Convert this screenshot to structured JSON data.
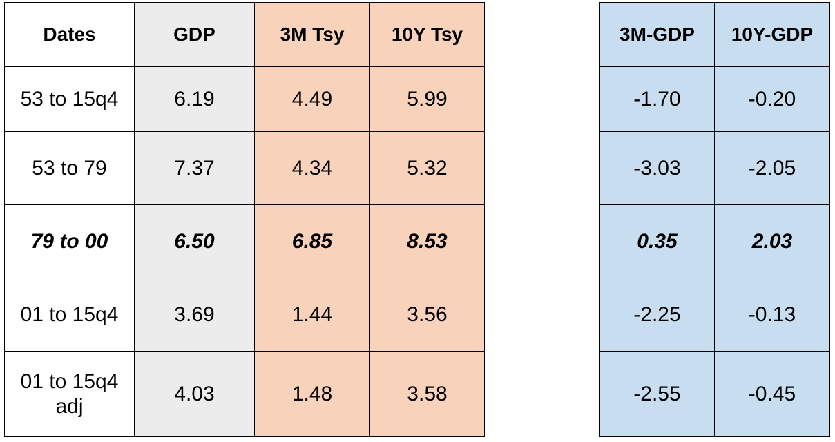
{
  "left_table": {
    "header": [
      "Dates",
      "GDP",
      "3M Tsy",
      "10Y Tsy"
    ],
    "rows": [
      [
        "53 to 15q4",
        "6.19",
        "4.49",
        "5.99"
      ],
      [
        "53 to 79",
        "7.37",
        "4.34",
        "5.32"
      ],
      [
        "79 to 00",
        "6.50",
        "6.85",
        "8.53"
      ],
      [
        "01 to 15q4",
        "3.69",
        "1.44",
        "3.56"
      ],
      [
        "01 to 15q4 adj",
        "4.03",
        "1.48",
        "3.58"
      ]
    ]
  },
  "right_table": {
    "header": [
      "3M-GDP",
      "10Y-GDP"
    ],
    "rows": [
      [
        "-1.70",
        "-0.20"
      ],
      [
        "-3.03",
        "-2.05"
      ],
      [
        "0.35",
        "2.03"
      ],
      [
        "-2.25",
        "-0.13"
      ],
      [
        "-2.55",
        "-0.45"
      ]
    ]
  }
}
